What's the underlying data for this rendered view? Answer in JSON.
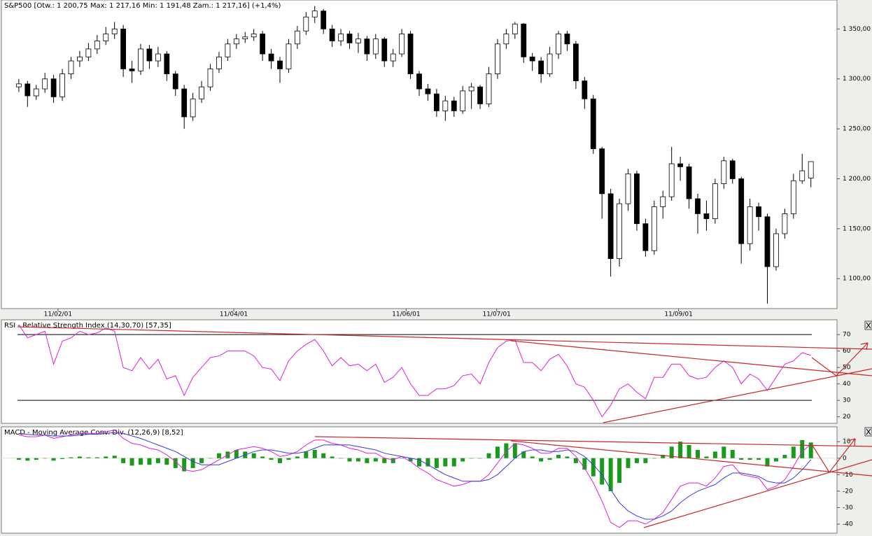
{
  "chart_data": [
    {
      "type": "candlestick",
      "title": "S&P500 [Otw.: 1 200,75  Max: 1 217,16  Min: 1 191,48  Zam.: 1 217,16] (+1,4%)",
      "open": [
        1292,
        1295,
        1283,
        1290,
        1300,
        1282,
        1305,
        1318,
        1322,
        1330,
        1338,
        1345,
        1350,
        1310,
        1308,
        1330,
        1318,
        1325,
        1305,
        1290,
        1262,
        1280,
        1292,
        1310,
        1322,
        1335,
        1340,
        1342,
        1345,
        1325,
        1318,
        1310,
        1335,
        1348,
        1362,
        1368,
        1350,
        1338,
        1345,
        1336,
        1340,
        1325,
        1340,
        1318,
        1325,
        1345,
        1305,
        1290,
        1285,
        1268,
        1278,
        1268,
        1288,
        1292,
        1275,
        1305,
        1335,
        1345,
        1355,
        1322,
        1318,
        1305,
        1325,
        1345,
        1335,
        1298,
        1280,
        1230,
        1185,
        1120,
        1175,
        1205,
        1155,
        1128,
        1172,
        1182,
        1215,
        1212,
        1180,
        1165,
        1160,
        1195,
        1218,
        1200,
        1135,
        1172,
        1162,
        1112,
        1145,
        1165,
        1198,
        1200.75
      ],
      "high": [
        1300,
        1298,
        1294,
        1306,
        1304,
        1310,
        1322,
        1328,
        1336,
        1344,
        1352,
        1357,
        1354,
        1318,
        1335,
        1334,
        1332,
        1328,
        1308,
        1294,
        1286,
        1298,
        1315,
        1327,
        1340,
        1345,
        1347,
        1350,
        1348,
        1330,
        1322,
        1340,
        1353,
        1367,
        1373,
        1370,
        1354,
        1350,
        1348,
        1346,
        1343,
        1345,
        1342,
        1330,
        1350,
        1348,
        1308,
        1295,
        1290,
        1283,
        1282,
        1293,
        1296,
        1294,
        1312,
        1340,
        1350,
        1357,
        1356,
        1326,
        1322,
        1332,
        1348,
        1348,
        1338,
        1302,
        1284,
        1232,
        1190,
        1180,
        1210,
        1208,
        1160,
        1178,
        1188,
        1232,
        1222,
        1215,
        1185,
        1178,
        1200,
        1222,
        1220,
        1202,
        1180,
        1176,
        1165,
        1150,
        1170,
        1205,
        1225,
        1217.16
      ],
      "low": [
        1287,
        1272,
        1279,
        1286,
        1276,
        1278,
        1300,
        1312,
        1318,
        1325,
        1334,
        1340,
        1302,
        1296,
        1304,
        1310,
        1312,
        1298,
        1283,
        1250,
        1258,
        1276,
        1288,
        1306,
        1318,
        1330,
        1336,
        1338,
        1318,
        1310,
        1296,
        1306,
        1330,
        1344,
        1356,
        1345,
        1332,
        1333,
        1330,
        1326,
        1318,
        1320,
        1312,
        1312,
        1322,
        1300,
        1283,
        1278,
        1262,
        1258,
        1262,
        1265,
        1270,
        1270,
        1272,
        1300,
        1330,
        1340,
        1316,
        1308,
        1296,
        1302,
        1320,
        1328,
        1290,
        1270,
        1225,
        1160,
        1102,
        1112,
        1168,
        1148,
        1122,
        1124,
        1160,
        1178,
        1198,
        1170,
        1145,
        1148,
        1155,
        1190,
        1195,
        1115,
        1128,
        1148,
        1075,
        1108,
        1140,
        1160,
        1195,
        1191.48
      ],
      "close": [
        1295,
        1283,
        1290,
        1300,
        1282,
        1305,
        1318,
        1322,
        1330,
        1338,
        1345,
        1350,
        1310,
        1308,
        1330,
        1318,
        1325,
        1305,
        1290,
        1262,
        1280,
        1292,
        1310,
        1322,
        1335,
        1340,
        1342,
        1345,
        1325,
        1318,
        1310,
        1335,
        1348,
        1362,
        1368,
        1350,
        1338,
        1345,
        1336,
        1340,
        1325,
        1340,
        1318,
        1325,
        1345,
        1305,
        1290,
        1285,
        1268,
        1278,
        1268,
        1288,
        1292,
        1275,
        1305,
        1335,
        1345,
        1355,
        1322,
        1318,
        1305,
        1325,
        1345,
        1335,
        1298,
        1280,
        1230,
        1185,
        1120,
        1175,
        1205,
        1155,
        1128,
        1172,
        1182,
        1215,
        1212,
        1180,
        1165,
        1160,
        1195,
        1218,
        1200,
        1135,
        1172,
        1162,
        1112,
        1145,
        1165,
        1198,
        1208,
        1217.16
      ],
      "xlim": [
        -2,
        94
      ],
      "xticks": [
        {
          "value": 4.5,
          "label": "11/02/01"
        },
        {
          "value": 24.7,
          "label": "11/04/01"
        },
        {
          "value": 44.5,
          "label": "11/06/01"
        },
        {
          "value": 54.9,
          "label": "11/07/01"
        },
        {
          "value": 75.8,
          "label": "11/09/01"
        }
      ],
      "ylim": [
        1070,
        1379
      ],
      "yticks": [
        {
          "value": 1100,
          "label": "1 100,00"
        },
        {
          "value": 1150,
          "label": "1 150,00"
        },
        {
          "value": 1200,
          "label": "1 200,00"
        },
        {
          "value": 1250,
          "label": "1 250,00"
        },
        {
          "value": 1300,
          "label": "1 300,00"
        },
        {
          "value": 1350,
          "label": "1 350,00"
        }
      ],
      "up_color": "#ffffff",
      "down_color": "#000000"
    },
    {
      "type": "line",
      "title": "RSI - Relative Strength Index (14,30,70) [57,35]",
      "series": [
        {
          "color": "#e020d8",
          "values": [
            76,
            68,
            70,
            72,
            52,
            66,
            68,
            72,
            70,
            71,
            74,
            72,
            50,
            48,
            56,
            49,
            55,
            43,
            45,
            33,
            44,
            50,
            56,
            57,
            60,
            60,
            60,
            57,
            50,
            49,
            42,
            54,
            60,
            64,
            67,
            60,
            51,
            56,
            51,
            52,
            48,
            52,
            41,
            44,
            50,
            40,
            33,
            33,
            37,
            37,
            39,
            45,
            46,
            40,
            53,
            62,
            66,
            67,
            53,
            53,
            48,
            55,
            58,
            51,
            40,
            38,
            30,
            20,
            27,
            37,
            40,
            35,
            31,
            44,
            44,
            52,
            52,
            45,
            43,
            44,
            50,
            54,
            50,
            40,
            46,
            43,
            36,
            44,
            52,
            54,
            59,
            57.35
          ]
        }
      ],
      "levels": [
        30,
        70
      ],
      "xlim": [
        -2,
        94
      ],
      "ylim": [
        16,
        79
      ],
      "yticks": [
        20,
        30,
        40,
        50,
        60,
        70
      ]
    },
    {
      "type": "macd",
      "title": "MACD - Moving Average Conv. Div. (12,26,9) [8,52]",
      "series": [
        {
          "kind": "bar",
          "color": "#1a9a1a",
          "values": [
            -1,
            -1.5,
            -1,
            0,
            -1.5,
            -0.5,
            0.5,
            1,
            0.5,
            0.5,
            1,
            1.5,
            -3,
            -4.5,
            -4,
            -4,
            -3,
            -4,
            -6,
            -8,
            -6,
            -3,
            0,
            3,
            4,
            5,
            4,
            3,
            1,
            -1,
            -3,
            -1,
            1,
            4,
            5,
            3,
            1,
            0,
            -2,
            -2,
            -3,
            -2,
            -3,
            -3,
            0,
            -2,
            -5,
            -5,
            -6,
            -5,
            -5,
            -2,
            0,
            0,
            3,
            7,
            9,
            9,
            4,
            1,
            -2,
            -1,
            2,
            1,
            -3,
            -7,
            -11,
            -16,
            -20,
            -15,
            -6,
            -3,
            -3,
            0,
            2,
            7,
            10,
            8,
            5,
            1,
            4,
            7,
            5,
            -1,
            -1,
            -1,
            -5,
            -2,
            2,
            7,
            11,
            9.52
          ]
        },
        {
          "kind": "line",
          "color": "#e020d8",
          "values": [
            14,
            13,
            13,
            14,
            12,
            13,
            14,
            15,
            15,
            15,
            16,
            17,
            12,
            9,
            8,
            6,
            5,
            2,
            -2,
            -7,
            -8,
            -7,
            -4,
            -1,
            2,
            5,
            6,
            7,
            6,
            4,
            1,
            2,
            4,
            8,
            11,
            11,
            9,
            8,
            6,
            5,
            3,
            3,
            0,
            -1,
            1,
            -2,
            -6,
            -9,
            -13,
            -15,
            -17,
            -16,
            -14,
            -14,
            -10,
            -3,
            4,
            9,
            8,
            6,
            3,
            3,
            6,
            6,
            1,
            -6,
            -15,
            -26,
            -39,
            -42,
            -38,
            -38,
            -40,
            -37,
            -33,
            -25,
            -17,
            -15,
            -15,
            -17,
            -12,
            -5,
            -4,
            -10,
            -11,
            -12,
            -19,
            -17,
            -13,
            -5,
            4,
            8.52
          ]
        },
        {
          "kind": "line",
          "color": "#3a3ae0",
          "values": [
            15,
            14.5,
            14,
            14,
            13.5,
            13.5,
            13.5,
            14,
            14.5,
            14.5,
            15,
            15.5,
            15,
            13.5,
            12,
            10,
            8,
            6,
            4,
            1,
            -2,
            -4,
            -4,
            -4,
            -2,
            0,
            2,
            4,
            5,
            5,
            4,
            3,
            3,
            4,
            6,
            8,
            8,
            8,
            8,
            7,
            6,
            5,
            3,
            2,
            1,
            0,
            -1,
            -4,
            -7,
            -10,
            -12,
            -14,
            -14,
            -14,
            -13,
            -10,
            -5,
            0,
            4,
            5,
            5,
            4,
            4,
            5,
            4,
            1,
            -4,
            -10,
            -19,
            -27,
            -32,
            -35,
            -37,
            -37,
            -35,
            -32,
            -27,
            -23,
            -20,
            -18,
            -16,
            -12,
            -9,
            -9,
            -10,
            -11,
            -14,
            -15,
            -15,
            -12,
            -7,
            -1
          ]
        }
      ],
      "xlim": [
        -2,
        94
      ],
      "ylim": [
        -45.5,
        19
      ],
      "yticks": [
        -40,
        -30,
        -20,
        -10,
        0,
        10
      ]
    }
  ]
}
